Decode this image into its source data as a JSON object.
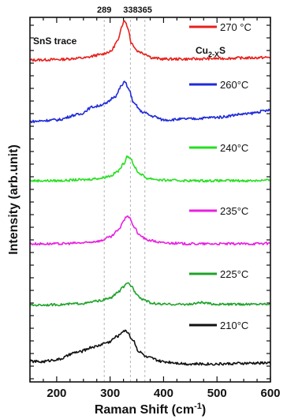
{
  "chart_data": {
    "type": "line",
    "xlabel": "Raman Shift (cm-1)",
    "xlabel_main": "Raman Shift (cm",
    "xlabel_sup": "-1",
    "xlabel_end": ")",
    "ylabel": "Intensity (arb.unit)",
    "xlim": [
      150,
      600
    ],
    "xticks": [
      200,
      300,
      400,
      500,
      600
    ],
    "yticks_labeled": false,
    "reference_lines": [
      289,
      338,
      365
    ],
    "reference_labels": [
      "289",
      "338",
      "365"
    ],
    "annotations": [
      {
        "text": "SnS trace"
      },
      {
        "text_main": "Cu",
        "text_sub": "2-X",
        "text_end": "S"
      }
    ],
    "legend": "stacked, right of each curve",
    "series": [
      {
        "name": "270 °C",
        "color": "#e8201c",
        "offset": 5,
        "points": [
          [
            150,
            0.18
          ],
          [
            200,
            0.19
          ],
          [
            250,
            0.22
          ],
          [
            280,
            0.28
          ],
          [
            300,
            0.34
          ],
          [
            315,
            0.55
          ],
          [
            322,
            0.85
          ],
          [
            327,
            0.95
          ],
          [
            333,
            0.8
          ],
          [
            340,
            0.5
          ],
          [
            352,
            0.35
          ],
          [
            365,
            0.3
          ],
          [
            380,
            0.22
          ],
          [
            400,
            0.2
          ],
          [
            450,
            0.2
          ],
          [
            500,
            0.21
          ],
          [
            550,
            0.22
          ],
          [
            600,
            0.23
          ]
        ]
      },
      {
        "name": "260°C",
        "color": "#1f2bd8",
        "offset": 4,
        "points": [
          [
            150,
            0.12
          ],
          [
            200,
            0.15
          ],
          [
            240,
            0.25
          ],
          [
            270,
            0.4
          ],
          [
            290,
            0.45
          ],
          [
            310,
            0.6
          ],
          [
            322,
            0.8
          ],
          [
            328,
            0.88
          ],
          [
            335,
            0.72
          ],
          [
            345,
            0.45
          ],
          [
            360,
            0.3
          ],
          [
            380,
            0.22
          ],
          [
            400,
            0.15
          ],
          [
            450,
            0.17
          ],
          [
            500,
            0.2
          ],
          [
            550,
            0.26
          ],
          [
            600,
            0.33
          ]
        ]
      },
      {
        "name": "240°C",
        "color": "#25e01f",
        "offset": 3,
        "points": [
          [
            150,
            0.1
          ],
          [
            200,
            0.1
          ],
          [
            250,
            0.12
          ],
          [
            280,
            0.15
          ],
          [
            300,
            0.2
          ],
          [
            315,
            0.3
          ],
          [
            325,
            0.45
          ],
          [
            332,
            0.62
          ],
          [
            338,
            0.58
          ],
          [
            345,
            0.4
          ],
          [
            355,
            0.25
          ],
          [
            370,
            0.15
          ],
          [
            400,
            0.11
          ],
          [
            450,
            0.1
          ],
          [
            500,
            0.1
          ],
          [
            550,
            0.1
          ],
          [
            600,
            0.11
          ]
        ]
      },
      {
        "name": "235°C",
        "color": "#e81fe0",
        "offset": 2,
        "points": [
          [
            150,
            0.1
          ],
          [
            200,
            0.1
          ],
          [
            250,
            0.12
          ],
          [
            280,
            0.16
          ],
          [
            300,
            0.24
          ],
          [
            315,
            0.38
          ],
          [
            325,
            0.58
          ],
          [
            332,
            0.7
          ],
          [
            338,
            0.62
          ],
          [
            345,
            0.45
          ],
          [
            355,
            0.28
          ],
          [
            370,
            0.18
          ],
          [
            400,
            0.12
          ],
          [
            450,
            0.1
          ],
          [
            500,
            0.1
          ],
          [
            550,
            0.1
          ],
          [
            600,
            0.11
          ]
        ]
      },
      {
        "name": "225°C",
        "color": "#1fa32a",
        "offset": 1,
        "points": [
          [
            150,
            0.06
          ],
          [
            200,
            0.07
          ],
          [
            250,
            0.1
          ],
          [
            280,
            0.16
          ],
          [
            300,
            0.22
          ],
          [
            315,
            0.36
          ],
          [
            325,
            0.48
          ],
          [
            333,
            0.56
          ],
          [
            340,
            0.5
          ],
          [
            348,
            0.34
          ],
          [
            360,
            0.2
          ],
          [
            380,
            0.1
          ],
          [
            400,
            0.08
          ],
          [
            450,
            0.08
          ],
          [
            470,
            0.12
          ],
          [
            480,
            0.1
          ],
          [
            500,
            0.08
          ],
          [
            550,
            0.08
          ],
          [
            600,
            0.09
          ]
        ]
      },
      {
        "name": "210°C",
        "color": "#111111",
        "offset": 0,
        "points": [
          [
            150,
            0.15
          ],
          [
            170,
            0.14
          ],
          [
            200,
            0.18
          ],
          [
            240,
            0.32
          ],
          [
            270,
            0.42
          ],
          [
            295,
            0.5
          ],
          [
            315,
            0.62
          ],
          [
            325,
            0.72
          ],
          [
            332,
            0.7
          ],
          [
            342,
            0.55
          ],
          [
            355,
            0.32
          ],
          [
            370,
            0.22
          ],
          [
            400,
            0.14
          ],
          [
            450,
            0.1
          ],
          [
            500,
            0.1
          ],
          [
            550,
            0.11
          ],
          [
            600,
            0.12
          ]
        ]
      }
    ]
  }
}
